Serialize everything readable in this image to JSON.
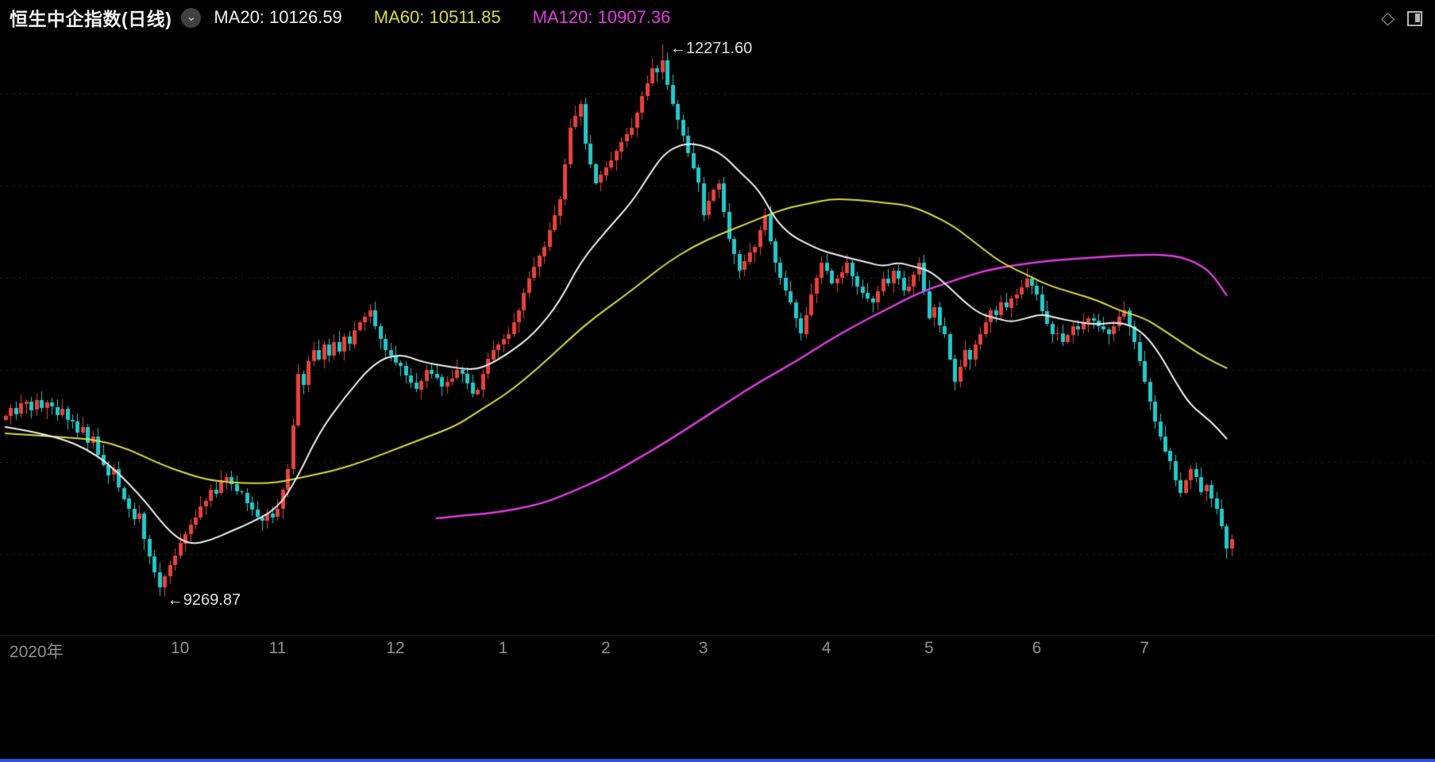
{
  "header": {
    "title": "恒生中企指数(日线)",
    "collapse_glyph": "⌄",
    "diamond_glyph": "◇",
    "legend": [
      {
        "name": "ma20",
        "label": "MA20: 10126.59",
        "color": "#f2f2f2"
      },
      {
        "name": "ma60",
        "label": "MA60: 10511.85",
        "color": "#dcdc3c"
      },
      {
        "name": "ma120",
        "label": "MA120: 10907.36",
        "color": "#e13ce1"
      }
    ]
  },
  "chart_data": {
    "type": "candlestick",
    "title": "恒生中企指数(日线)",
    "period": "日线",
    "ylim": [
      9060,
      12330
    ],
    "gridlines": [
      9500,
      10000,
      10500,
      11000,
      11500,
      12000
    ],
    "grid_style": "dotted",
    "colors": {
      "up": "#e8423c",
      "down": "#25c9c9",
      "grid": "#2e2e2e",
      "axis_line": "#232323",
      "axis_text": "#8f8f8f",
      "background": "#000000",
      "bottom_bar": "#2b55d4"
    },
    "x_ticks": [
      {
        "label": "2020年",
        "i": 6
      },
      {
        "label": "10",
        "i": 34
      },
      {
        "label": "11",
        "i": 53
      },
      {
        "label": "12",
        "i": 76
      },
      {
        "label": "1",
        "i": 97
      },
      {
        "label": "2",
        "i": 117
      },
      {
        "label": "3",
        "i": 136
      },
      {
        "label": "4",
        "i": 160
      },
      {
        "label": "5",
        "i": 180
      },
      {
        "label": "6",
        "i": 201
      },
      {
        "label": "7",
        "i": 222
      }
    ],
    "annotations": {
      "high": {
        "index": 128,
        "price": 12271.6,
        "text": "←12271.60"
      },
      "low": {
        "index": 30,
        "price": 9269.87,
        "text": "←9269.87"
      }
    },
    "candles": {
      "first_open": 10230,
      "closes": [
        10250,
        10295,
        10260,
        10318,
        10330,
        10282,
        10335,
        10290,
        10322,
        10300,
        10255,
        10290,
        10230,
        10220,
        10160,
        10190,
        10105,
        10140,
        10040,
        9985,
        9930,
        9960,
        9860,
        9800,
        9745,
        9690,
        9720,
        9580,
        9486,
        9400,
        9320,
        9380,
        9440,
        9490,
        9560,
        9610,
        9660,
        9700,
        9760,
        9790,
        9850,
        9830,
        9900,
        9920,
        9880,
        9840,
        9834,
        9780,
        9740,
        9700,
        9683,
        9720,
        9700,
        9745,
        9850,
        9962,
        10200,
        10480,
        10420,
        10550,
        10610,
        10560,
        10640,
        10580,
        10653,
        10600,
        10680,
        10640,
        10718,
        10760,
        10790,
        10825,
        10740,
        10670,
        10610,
        10580,
        10540,
        10523,
        10470,
        10430,
        10394,
        10440,
        10500,
        10480,
        10460,
        10410,
        10437,
        10455,
        10500,
        10480,
        10430,
        10370,
        10394,
        10480,
        10560,
        10610,
        10640,
        10670,
        10696,
        10760,
        10825,
        10920,
        10998,
        11060,
        11120,
        11170,
        11260,
        11340,
        11430,
        11620,
        11818,
        11880,
        11948,
        11732,
        11620,
        11516,
        11560,
        11602,
        11640,
        11690,
        11740,
        11780,
        11818,
        11900,
        11990,
        12060,
        12142,
        12120,
        12185,
        12050,
        11948,
        11860,
        11775,
        11680,
        11600,
        11516,
        11343,
        11420,
        11480,
        11516,
        11360,
        11214,
        11130,
        11041,
        11090,
        11140,
        11170,
        11260,
        11343,
        11200,
        11084,
        11000,
        10930,
        10868,
        10780,
        10696,
        10800,
        10912,
        11000,
        11084,
        11040,
        10970,
        10998,
        11030,
        11084,
        11010,
        10955,
        10920,
        10890,
        10868,
        10930,
        10998,
        10970,
        11041,
        11000,
        10930,
        10955,
        11020,
        11084,
        10930,
        10782,
        10840,
        10740,
        10696,
        10560,
        10437,
        10520,
        10610,
        10560,
        10640,
        10696,
        10760,
        10825,
        10800,
        10868,
        10840,
        10890,
        10912,
        10950,
        10998,
        10960,
        10912,
        10820,
        10750,
        10696,
        10700,
        10653,
        10690,
        10739,
        10720,
        10760,
        10782,
        10770,
        10739,
        10720,
        10696,
        10740,
        10790,
        10825,
        10740,
        10653,
        10550,
        10437,
        10330,
        10221,
        10140,
        10060,
        10005,
        9900,
        9832,
        9900,
        9962,
        9920,
        9840,
        9875,
        9800,
        9745,
        9650,
        9530,
        9580
      ]
    },
    "ma": {
      "ma20": {
        "color": "#f2f2f2",
        "width": 2,
        "legend_value": 10126.59,
        "points": [
          [
            0,
            10190
          ],
          [
            9,
            10150
          ],
          [
            18,
            10045
          ],
          [
            26,
            9830
          ],
          [
            32,
            9615
          ],
          [
            36,
            9550
          ],
          [
            40,
            9575
          ],
          [
            44,
            9625
          ],
          [
            47,
            9660
          ],
          [
            53,
            9745
          ],
          [
            57,
            9920
          ],
          [
            61,
            10155
          ],
          [
            66,
            10350
          ],
          [
            72,
            10545
          ],
          [
            77,
            10590
          ],
          [
            81,
            10545
          ],
          [
            86,
            10520
          ],
          [
            91,
            10500
          ],
          [
            94,
            10525
          ],
          [
            98,
            10590
          ],
          [
            103,
            10695
          ],
          [
            108,
            10870
          ],
          [
            112,
            11085
          ],
          [
            117,
            11255
          ],
          [
            122,
            11410
          ],
          [
            125,
            11540
          ],
          [
            128,
            11665
          ],
          [
            131,
            11720
          ],
          [
            134,
            11732
          ],
          [
            137,
            11710
          ],
          [
            140,
            11665
          ],
          [
            143,
            11580
          ],
          [
            147,
            11475
          ],
          [
            150,
            11320
          ],
          [
            153,
            11235
          ],
          [
            156,
            11190
          ],
          [
            159,
            11150
          ],
          [
            162,
            11127
          ],
          [
            165,
            11105
          ],
          [
            168,
            11085
          ],
          [
            171,
            11063
          ],
          [
            174,
            11085
          ],
          [
            177,
            11063
          ],
          [
            180,
            11041
          ],
          [
            183,
            10975
          ],
          [
            187,
            10868
          ],
          [
            190,
            10804
          ],
          [
            193,
            10782
          ],
          [
            196,
            10760
          ],
          [
            199,
            10782
          ],
          [
            202,
            10804
          ],
          [
            205,
            10782
          ],
          [
            209,
            10760
          ],
          [
            213,
            10747
          ],
          [
            216,
            10760
          ],
          [
            219,
            10747
          ],
          [
            222,
            10696
          ],
          [
            225,
            10588
          ],
          [
            228,
            10437
          ],
          [
            231,
            10307
          ],
          [
            235,
            10221
          ],
          [
            238,
            10127
          ]
        ]
      },
      "ma60": {
        "color": "#dcdc3c",
        "width": 2,
        "legend_value": 10511.85,
        "points": [
          [
            0,
            10156
          ],
          [
            12,
            10134
          ],
          [
            18,
            10120
          ],
          [
            24,
            10070
          ],
          [
            30,
            9990
          ],
          [
            35,
            9940
          ],
          [
            39,
            9906
          ],
          [
            44,
            9888
          ],
          [
            49,
            9884
          ],
          [
            53,
            9888
          ],
          [
            58,
            9918
          ],
          [
            64,
            9953
          ],
          [
            70,
            10005
          ],
          [
            76,
            10070
          ],
          [
            82,
            10134
          ],
          [
            88,
            10199
          ],
          [
            92,
            10273
          ],
          [
            97,
            10359
          ],
          [
            101,
            10445
          ],
          [
            106,
            10566
          ],
          [
            111,
            10696
          ],
          [
            115,
            10790
          ],
          [
            120,
            10890
          ],
          [
            125,
            10998
          ],
          [
            129,
            11084
          ],
          [
            134,
            11171
          ],
          [
            139,
            11235
          ],
          [
            143,
            11279
          ],
          [
            148,
            11335
          ],
          [
            152,
            11378
          ],
          [
            157,
            11408
          ],
          [
            161,
            11430
          ],
          [
            166,
            11425
          ],
          [
            171,
            11410
          ],
          [
            176,
            11395
          ],
          [
            180,
            11352
          ],
          [
            185,
            11279
          ],
          [
            189,
            11192
          ],
          [
            194,
            11084
          ],
          [
            199,
            11019
          ],
          [
            203,
            10963
          ],
          [
            208,
            10920
          ],
          [
            213,
            10877
          ],
          [
            217,
            10825
          ],
          [
            222,
            10782
          ],
          [
            225,
            10730
          ],
          [
            228,
            10674
          ],
          [
            231,
            10618
          ],
          [
            234,
            10566
          ],
          [
            238,
            10511
          ]
        ]
      },
      "ma120": {
        "color": "#e13ce1",
        "width": 2.5,
        "legend_value": 10907.36,
        "points": [
          [
            84,
            9694
          ],
          [
            89,
            9710
          ],
          [
            95,
            9722
          ],
          [
            104,
            9768
          ],
          [
            110,
            9833
          ],
          [
            117,
            9919
          ],
          [
            123,
            10014
          ],
          [
            129,
            10113
          ],
          [
            135,
            10221
          ],
          [
            141,
            10329
          ],
          [
            147,
            10437
          ],
          [
            154,
            10545
          ],
          [
            160,
            10653
          ],
          [
            166,
            10748
          ],
          [
            172,
            10834
          ],
          [
            178,
            10920
          ],
          [
            185,
            10989
          ],
          [
            191,
            11041
          ],
          [
            197,
            11071
          ],
          [
            203,
            11093
          ],
          [
            209,
            11106
          ],
          [
            216,
            11119
          ],
          [
            222,
            11127
          ],
          [
            226,
            11125
          ],
          [
            229,
            11115
          ],
          [
            232,
            11085
          ],
          [
            235,
            11030
          ],
          [
            238,
            10907
          ]
        ]
      }
    }
  }
}
